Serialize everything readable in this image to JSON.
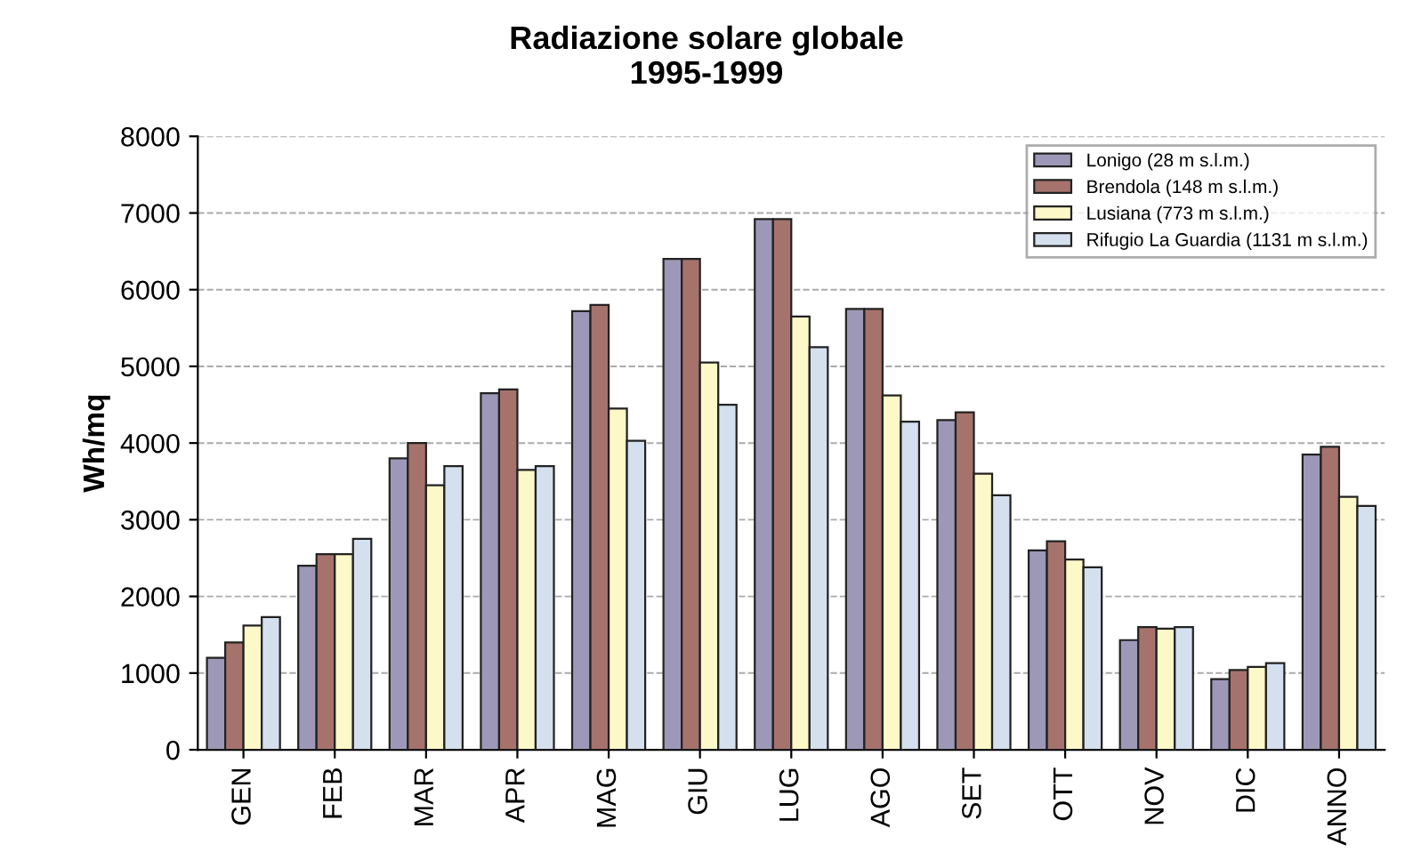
{
  "chart_data": {
    "type": "bar",
    "title": "Radiazione solare globale\n1995-1999",
    "ylabel": "Wh/mq",
    "categories": [
      "GEN",
      "FEB",
      "MAR",
      "APR",
      "MAG",
      "GIU",
      "LUG",
      "AGO",
      "SET",
      "OTT",
      "NOV",
      "DIC",
      "ANNO"
    ],
    "series": [
      {
        "name": "Lonigo (28 m s.l.m.)",
        "color": "#9e98b8",
        "values": [
          1200,
          2400,
          3800,
          4650,
          5720,
          6400,
          6920,
          5750,
          4300,
          2600,
          1430,
          920,
          3850
        ]
      },
      {
        "name": "Brendola (148 m s.l.m.)",
        "color": "#a6736c",
        "values": [
          1400,
          2550,
          4000,
          4700,
          5800,
          6400,
          6920,
          5750,
          4400,
          2720,
          1600,
          1040,
          3950
        ]
      },
      {
        "name": "Lusiana (773 m s.l.m.)",
        "color": "#fdf8c8",
        "values": [
          1620,
          2550,
          3450,
          3650,
          4450,
          5050,
          5650,
          4620,
          3600,
          2480,
          1580,
          1080,
          3300
        ]
      },
      {
        "name": "Rifugio La Guardia (1131 m s.l.m.)",
        "color": "#d4e0ee",
        "values": [
          1730,
          2750,
          3700,
          3700,
          4030,
          4500,
          5250,
          4280,
          3320,
          2380,
          1600,
          1130,
          3180
        ]
      }
    ],
    "ylim": [
      0,
      8000
    ],
    "yticks": [
      0,
      1000,
      2000,
      3000,
      4000,
      5000,
      6000,
      7000,
      8000
    ],
    "grid": "y",
    "legend": "top right"
  }
}
